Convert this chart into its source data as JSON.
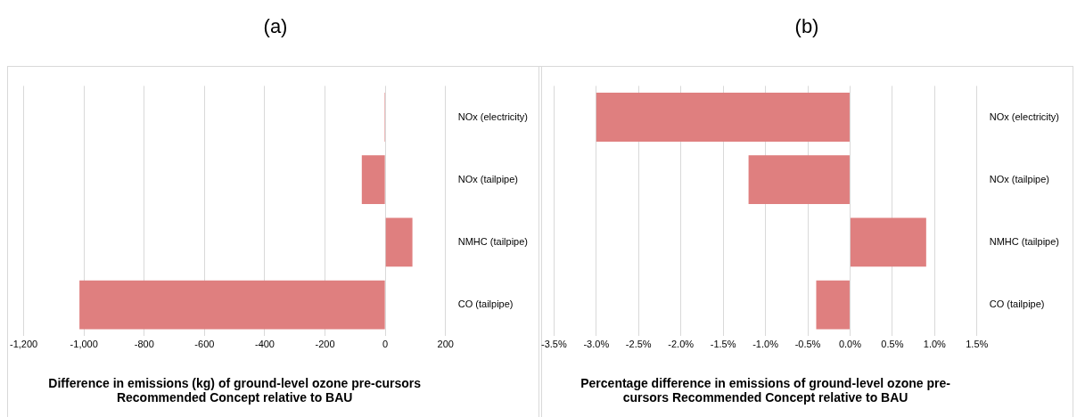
{
  "chart_data": [
    {
      "type": "bar",
      "orientation": "horizontal",
      "title": "(a)",
      "xlabel": "Difference in emissions (kg) of ground-level ozone pre-cursors Recommended Concept relative to BAU",
      "categories": [
        "NOx (electricity)",
        "NOx (tailpipe)",
        "NMHC (tailpipe)",
        "CO (tailpipe)"
      ],
      "values": [
        -3,
        -78,
        90,
        -1015
      ],
      "color": "#df7f7f",
      "xlim": [
        -1200,
        200
      ],
      "xticks": [
        {
          "value": -1200,
          "label": "-1,200"
        },
        {
          "value": -1000,
          "label": "-1,000"
        },
        -800,
        -600,
        -400,
        -200,
        0,
        200
      ],
      "grid": "x",
      "legend": false
    },
    {
      "type": "bar",
      "orientation": "horizontal",
      "title": "(b)",
      "xlabel": "Percentage difference in emissions of ground-level ozone pre-cursors Recommended Concept relative to BAU",
      "categories": [
        "NOx (electricity)",
        "NOx (tailpipe)",
        "NMHC (tailpipe)",
        "CO (tailpipe)"
      ],
      "values": [
        -3.0,
        -1.2,
        0.9,
        -0.4
      ],
      "color": "#df7f7f",
      "xlim": [
        -3.5,
        1.5
      ],
      "xticks": [
        {
          "value": -3.5,
          "label": "-3.5%"
        },
        {
          "value": -3.0,
          "label": "-3.0%"
        },
        {
          "value": -2.5,
          "label": "-2.5%"
        },
        {
          "value": -2.0,
          "label": "-2.0%"
        },
        {
          "value": -1.5,
          "label": "-1.5%"
        },
        {
          "value": -1.0,
          "label": "-1.0%"
        },
        {
          "value": -0.5,
          "label": "-0.5%"
        },
        {
          "value": 0,
          "label": "0.0%"
        },
        {
          "value": 0.5,
          "label": "0.5%"
        },
        {
          "value": 1.0,
          "label": "1.0%"
        },
        {
          "value": 1.5,
          "label": "1.5%"
        }
      ],
      "grid": "x",
      "legend": false
    }
  ]
}
